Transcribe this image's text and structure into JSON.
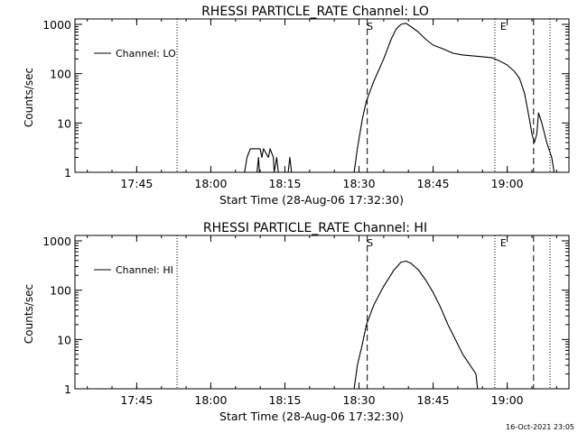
{
  "footer": {
    "timestamp": "16-Oct-2021 23:05"
  },
  "chart_data": [
    {
      "type": "line",
      "title": "RHESSI PARTICLE_RATE Channel: LO",
      "xlabel": "Start Time (28-Aug-06 17:32:30)",
      "ylabel": "Counts/sec",
      "x_unit": "minutes of 28-Aug-2006",
      "xlim": [
        "17:32:30",
        "19:12:30"
      ],
      "ylim": [
        1,
        1000
      ],
      "y_scale": "log",
      "x_ticks": [
        "17:45",
        "18:00",
        "18:15",
        "18:30",
        "18:45",
        "19:00"
      ],
      "y_ticks": [
        "1",
        "10",
        "100",
        "1000"
      ],
      "legend": {
        "placement": "top-left",
        "entries": [
          "Channel: LO"
        ]
      },
      "grid": false,
      "annotations": [
        {
          "text": "S",
          "time": "18:31:40"
        },
        {
          "text": "E",
          "time": "18:58:40"
        }
      ],
      "dotted_lines": [
        "17:53:10",
        "18:57:30",
        "19:08:40"
      ],
      "dashed_lines": [
        "18:31:40",
        "19:05:20"
      ],
      "series": [
        {
          "name": "Channel: LO",
          "segments": [
            [
              [
                "18:06:50",
                1
              ],
              [
                "18:07:20",
                2
              ],
              [
                "18:08:00",
                3
              ],
              [
                "18:10:00",
                3
              ],
              [
                "18:10:20",
                2
              ],
              [
                "18:10:40",
                3
              ],
              [
                "18:11:40",
                2
              ],
              [
                "18:12:00",
                3
              ],
              [
                "18:12:40",
                2
              ],
              [
                "18:12:50",
                1
              ]
            ],
            [
              [
                "18:09:20",
                1
              ],
              [
                "18:09:40",
                2
              ],
              [
                "18:09:50",
                1
              ]
            ],
            [
              [
                "18:12:50",
                1
              ],
              [
                "18:13:20",
                2
              ],
              [
                "18:13:40",
                1
              ]
            ],
            [
              [
                "18:15:40",
                1
              ],
              [
                "18:16:00",
                2
              ],
              [
                "18:16:20",
                1
              ]
            ],
            [
              [
                "18:29:00",
                1
              ],
              [
                "18:29:40",
                3
              ],
              [
                "18:30:40",
                12
              ],
              [
                "18:31:30",
                28
              ],
              [
                "18:33:00",
                70
              ],
              [
                "18:35:00",
                200
              ],
              [
                "18:36:30",
                500
              ],
              [
                "18:37:30",
                800
              ],
              [
                "18:38:30",
                1000
              ],
              [
                "18:39:30",
                1050
              ],
              [
                "18:40:30",
                900
              ],
              [
                "18:42:00",
                700
              ],
              [
                "18:43:30",
                500
              ],
              [
                "18:45:00",
                380
              ],
              [
                "18:47:00",
                320
              ],
              [
                "18:49:00",
                260
              ],
              [
                "18:51:00",
                240
              ],
              [
                "18:53:00",
                230
              ],
              [
                "18:55:00",
                220
              ],
              [
                "18:57:00",
                210
              ],
              [
                "18:58:30",
                180
              ],
              [
                "19:00:00",
                150
              ],
              [
                "19:01:30",
                110
              ],
              [
                "19:02:30",
                80
              ],
              [
                "19:03:30",
                40
              ],
              [
                "19:04:30",
                12
              ],
              [
                "19:05:00",
                6
              ],
              [
                "19:05:30",
                4
              ],
              [
                "19:06:00",
                6
              ],
              [
                "19:06:20",
                16
              ],
              [
                "19:07:00",
                10
              ],
              [
                "19:08:00",
                4
              ],
              [
                "19:09:00",
                2
              ],
              [
                "19:09:30",
                1
              ]
            ]
          ]
        }
      ]
    },
    {
      "type": "line",
      "title": "RHESSI PARTICLE_RATE Channel: HI",
      "xlabel": "Start Time (28-Aug-06 17:32:30)",
      "ylabel": "Counts/sec",
      "x_unit": "minutes of 28-Aug-2006",
      "xlim": [
        "17:32:30",
        "19:12:30"
      ],
      "ylim": [
        1,
        1000
      ],
      "y_scale": "log",
      "x_ticks": [
        "17:45",
        "18:00",
        "18:15",
        "18:30",
        "18:45",
        "19:00"
      ],
      "y_ticks": [
        "1",
        "10",
        "100",
        "1000"
      ],
      "legend": {
        "placement": "top-left",
        "entries": [
          "Channel: HI"
        ]
      },
      "grid": false,
      "annotations": [
        {
          "text": "S",
          "time": "18:31:40"
        },
        {
          "text": "E",
          "time": "18:58:40"
        }
      ],
      "dotted_lines": [
        "17:53:10",
        "18:57:30",
        "19:08:40"
      ],
      "dashed_lines": [
        "18:31:40",
        "19:05:20"
      ],
      "series": [
        {
          "name": "Channel: HI",
          "segments": [
            [
              [
                "18:29:00",
                1
              ],
              [
                "18:29:40",
                3
              ],
              [
                "18:30:40",
                8
              ],
              [
                "18:31:30",
                20
              ],
              [
                "18:33:00",
                50
              ],
              [
                "18:35:00",
                120
              ],
              [
                "18:37:00",
                250
              ],
              [
                "18:38:30",
                370
              ],
              [
                "18:39:30",
                390
              ],
              [
                "18:40:30",
                350
              ],
              [
                "18:42:00",
                260
              ],
              [
                "18:43:30",
                160
              ],
              [
                "18:45:00",
                90
              ],
              [
                "18:46:30",
                45
              ],
              [
                "18:48:00",
                20
              ],
              [
                "18:49:30",
                10
              ],
              [
                "18:51:00",
                5
              ],
              [
                "18:52:30",
                3
              ],
              [
                "18:53:40",
                2
              ],
              [
                "18:54:00",
                1
              ],
              [
                "18:55:00",
                1
              ]
            ]
          ]
        }
      ]
    }
  ]
}
